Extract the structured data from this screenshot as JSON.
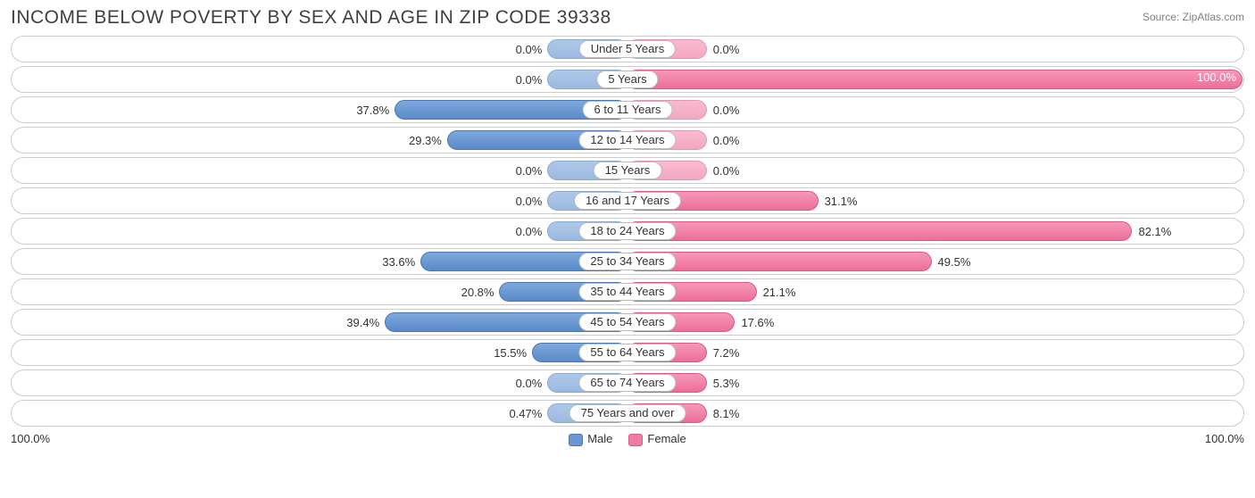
{
  "header": {
    "title": "INCOME BELOW POVERTY BY SEX AND AGE IN ZIP CODE 39338",
    "source": "Source: ZipAtlas.com"
  },
  "chart": {
    "type": "diverging-bar",
    "axis_max": 100.0,
    "axis_left_label": "100.0%",
    "axis_right_label": "100.0%",
    "min_bar_width_pct": 13.0,
    "colors": {
      "male_bar": "#6a97d1",
      "male_bar_dim": "#9bb9df",
      "female_bar": "#ef7aa2",
      "female_bar_dim": "#f4a6c2",
      "row_border": "#cccccc",
      "background": "#ffffff",
      "text": "#333333",
      "title_text": "#404040",
      "source_text": "#808080"
    },
    "legend": {
      "male": "Male",
      "female": "Female"
    },
    "rows": [
      {
        "category": "Under 5 Years",
        "male": 0.0,
        "female": 0.0,
        "male_label": "0.0%",
        "female_label": "0.0%"
      },
      {
        "category": "5 Years",
        "male": 0.0,
        "female": 100.0,
        "male_label": "0.0%",
        "female_label": "100.0%"
      },
      {
        "category": "6 to 11 Years",
        "male": 37.8,
        "female": 0.0,
        "male_label": "37.8%",
        "female_label": "0.0%"
      },
      {
        "category": "12 to 14 Years",
        "male": 29.3,
        "female": 0.0,
        "male_label": "29.3%",
        "female_label": "0.0%"
      },
      {
        "category": "15 Years",
        "male": 0.0,
        "female": 0.0,
        "male_label": "0.0%",
        "female_label": "0.0%"
      },
      {
        "category": "16 and 17 Years",
        "male": 0.0,
        "female": 31.1,
        "male_label": "0.0%",
        "female_label": "31.1%"
      },
      {
        "category": "18 to 24 Years",
        "male": 0.0,
        "female": 82.1,
        "male_label": "0.0%",
        "female_label": "82.1%"
      },
      {
        "category": "25 to 34 Years",
        "male": 33.6,
        "female": 49.5,
        "male_label": "33.6%",
        "female_label": "49.5%"
      },
      {
        "category": "35 to 44 Years",
        "male": 20.8,
        "female": 21.1,
        "male_label": "20.8%",
        "female_label": "21.1%"
      },
      {
        "category": "45 to 54 Years",
        "male": 39.4,
        "female": 17.6,
        "male_label": "39.4%",
        "female_label": "17.6%"
      },
      {
        "category": "55 to 64 Years",
        "male": 15.5,
        "female": 7.2,
        "male_label": "15.5%",
        "female_label": "7.2%"
      },
      {
        "category": "65 to 74 Years",
        "male": 0.0,
        "female": 5.3,
        "male_label": "0.0%",
        "female_label": "5.3%"
      },
      {
        "category": "75 Years and over",
        "male": 0.47,
        "female": 8.1,
        "male_label": "0.47%",
        "female_label": "8.1%"
      }
    ]
  }
}
